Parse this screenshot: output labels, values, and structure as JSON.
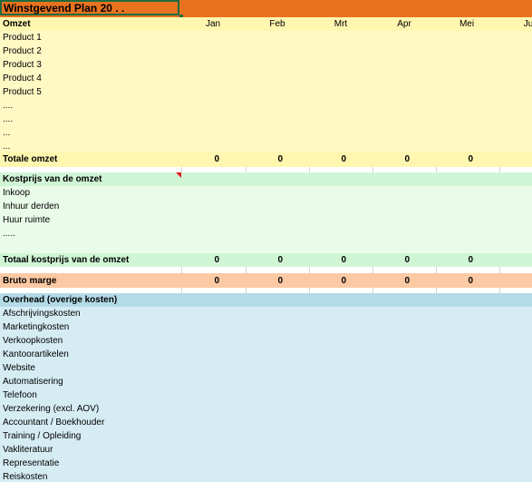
{
  "colors": {
    "title_bg": "#e8731f",
    "revenue_bg": "#fff9c4",
    "revenue_header_bg": "#fff6b0",
    "cost_bg": "#e9fbe9",
    "cost_header_bg": "#d0f5d5",
    "gross_margin_bg": "#fbc9a3",
    "overhead_bg": "#d6ecf3",
    "overhead_header_bg": "#b3dbe7",
    "comment_marker": "#e01b1b"
  },
  "title": "Winstgevend Plan 20 . .",
  "months": [
    "Jan",
    "Feb",
    "Mrt",
    "Apr",
    "Mei",
    "Ju"
  ],
  "revenue": {
    "header": "Omzet",
    "items": [
      "Product 1",
      "Product 2",
      "Product 3",
      "Product 4",
      "Product 5",
      "....",
      "....",
      "...",
      "..."
    ],
    "total_label": "Totale omzet",
    "totals": [
      "0",
      "0",
      "0",
      "0",
      "0"
    ]
  },
  "cost": {
    "header": "Kostprijs van de omzet",
    "items": [
      "Inkoop",
      "Inhuur derden",
      "Huur ruimte",
      "....."
    ],
    "total_label": "Totaal kostprijs van de omzet",
    "totals": [
      "0",
      "0",
      "0",
      "0",
      "0"
    ]
  },
  "gross_margin": {
    "label": "Bruto marge",
    "values": [
      "0",
      "0",
      "0",
      "0",
      "0"
    ]
  },
  "overhead": {
    "header": "Overhead (overige kosten)",
    "items": [
      "Afschrijvingskosten",
      "Marketingkosten",
      "Verkoopkosten",
      "Kantoorartikelen",
      "Website",
      "Automatisering",
      "Telefoon",
      "Verzekering (excl. AOV)",
      "Accountant / Boekhouder",
      "Training / Opleiding",
      "Vakliteratuur",
      "Representatie",
      "Reiskosten"
    ]
  }
}
